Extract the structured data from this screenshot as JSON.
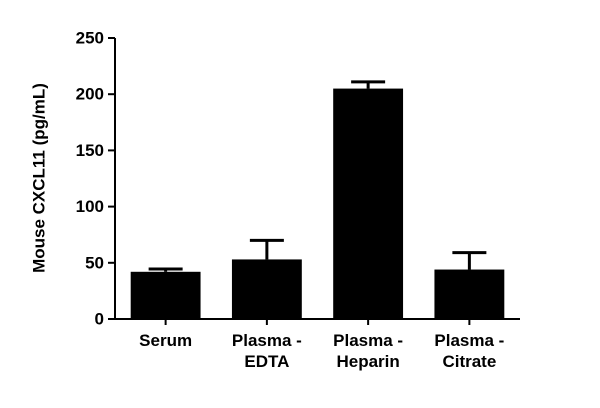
{
  "chart_data": {
    "type": "bar",
    "y_label": "Mouse CXCL11 (pg/mL)",
    "categories": [
      "Serum",
      "Plasma -\nEDTA",
      "Plasma -\nHeparin",
      "Plasma -\nCitrate"
    ],
    "values": [
      42,
      53,
      205,
      44
    ],
    "errors": [
      2.5,
      17,
      6,
      15
    ],
    "color": "#000000",
    "ylim": [
      0,
      250
    ],
    "yticks": [
      0,
      50,
      100,
      150,
      200,
      250
    ]
  }
}
